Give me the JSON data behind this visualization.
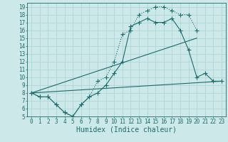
{
  "xlabel": "Humidex (Indice chaleur)",
  "xlim": [
    -0.5,
    23.5
  ],
  "ylim": [
    5,
    19.5
  ],
  "xticks": [
    0,
    1,
    2,
    3,
    4,
    5,
    6,
    7,
    8,
    9,
    10,
    11,
    12,
    13,
    14,
    15,
    16,
    17,
    18,
    19,
    20,
    21,
    22,
    23
  ],
  "yticks": [
    5,
    6,
    7,
    8,
    9,
    10,
    11,
    12,
    13,
    14,
    15,
    16,
    17,
    18,
    19
  ],
  "bg_color": "#cde8e8",
  "grid_color": "#b0d4d4",
  "line_color": "#1a6b6b",
  "line1_x": [
    0,
    1,
    2,
    3,
    4,
    5,
    6,
    7,
    8,
    9,
    10,
    11,
    12,
    13,
    14,
    15,
    16,
    17,
    18,
    19,
    20
  ],
  "line1_y": [
    8.0,
    7.5,
    7.5,
    6.5,
    5.5,
    5.0,
    6.5,
    7.5,
    9.5,
    10.0,
    12.0,
    15.5,
    16.0,
    18.0,
    18.5,
    19.0,
    19.0,
    18.5,
    18.0,
    18.0,
    16.0
  ],
  "line2_x": [
    0,
    1,
    2,
    3,
    4,
    5,
    6,
    7,
    8,
    9,
    10,
    11,
    12,
    13,
    14,
    15,
    16,
    17,
    18,
    19,
    20,
    21,
    22,
    23
  ],
  "line2_y": [
    8.0,
    7.5,
    7.5,
    6.5,
    5.5,
    5.0,
    6.5,
    7.5,
    8.0,
    9.0,
    10.5,
    12.0,
    16.5,
    17.0,
    17.5,
    17.0,
    17.0,
    17.5,
    16.0,
    13.5,
    10.0,
    10.5,
    9.5,
    9.5
  ],
  "line3_x": [
    0,
    23
  ],
  "line3_y": [
    8.0,
    9.5
  ],
  "line4_x": [
    0,
    20
  ],
  "line4_y": [
    8.0,
    15.0
  ],
  "markersize": 3,
  "linewidth": 0.8,
  "tick_fontsize": 5.5,
  "label_fontsize": 7
}
